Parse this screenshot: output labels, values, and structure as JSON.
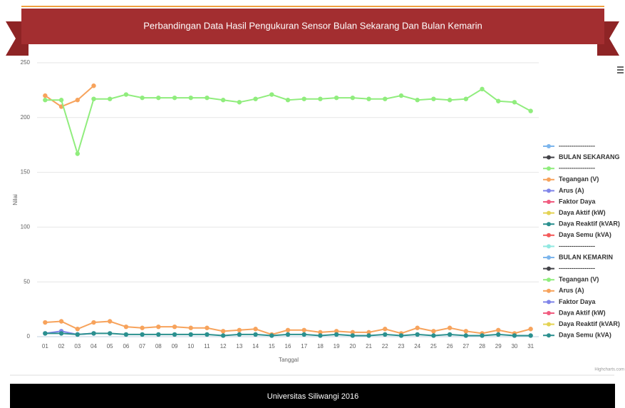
{
  "header": {
    "title": "Perbandingan Data Hasil Pengukuran Sensor Bulan Sekarang Dan Bulan Kemarin"
  },
  "chart_data": {
    "type": "line",
    "ylabel": "Nilai",
    "xlabel": "Tanggal",
    "credits": "Highcharts.com",
    "categories": [
      "01",
      "02",
      "03",
      "04",
      "05",
      "06",
      "07",
      "08",
      "09",
      "10",
      "11",
      "12",
      "13",
      "14",
      "15",
      "16",
      "17",
      "18",
      "19",
      "20",
      "21",
      "22",
      "23",
      "24",
      "25",
      "26",
      "27",
      "28",
      "29",
      "30",
      "31"
    ],
    "ylim": [
      0,
      250
    ],
    "yticks": [
      0,
      50,
      100,
      150,
      200,
      250
    ],
    "grid": true,
    "legend": "right",
    "series": [
      {
        "name": "-----------------",
        "color": "#7cb5ec"
      },
      {
        "name": "BULAN SEKARANG",
        "color": "#434348"
      },
      {
        "name": "-----------------",
        "color": "#90ed7d"
      },
      {
        "name": "Tegangan (V)",
        "color": "#f7a35c",
        "values": [
          220,
          210,
          216,
          229,
          null,
          null,
          null,
          null,
          null,
          null,
          null,
          null,
          null,
          null,
          null,
          null,
          null,
          null,
          null,
          null,
          null,
          null,
          null,
          null,
          null,
          null,
          null,
          null,
          null,
          null,
          null
        ]
      },
      {
        "name": "Arus (A)",
        "color": "#8085e9",
        "values": [
          3,
          5,
          2,
          3,
          null,
          null,
          null,
          null,
          null,
          null,
          null,
          null,
          null,
          null,
          null,
          null,
          null,
          null,
          null,
          null,
          null,
          null,
          null,
          null,
          null,
          null,
          null,
          null,
          null,
          null,
          null
        ]
      },
      {
        "name": "Faktor Daya",
        "color": "#f15c80"
      },
      {
        "name": "Daya Aktif (kW)",
        "color": "#e4d354"
      },
      {
        "name": "Daya Reaktif (kVAR)",
        "color": "#2b908f"
      },
      {
        "name": "Daya Semu (kVA)",
        "color": "#f45b5b"
      },
      {
        "name": "-----------------",
        "color": "#91e8e1"
      },
      {
        "name": "BULAN KEMARIN",
        "color": "#7cb5ec"
      },
      {
        "name": "-----------------",
        "color": "#434348"
      },
      {
        "name": "Tegangan (V)",
        "color": "#90ed7d",
        "values": [
          216,
          216,
          167,
          217,
          217,
          221,
          218,
          218,
          218,
          218,
          218,
          216,
          214,
          217,
          221,
          216,
          217,
          217,
          218,
          218,
          217,
          217,
          220,
          216,
          217,
          216,
          217,
          226,
          215,
          214,
          206
        ]
      },
      {
        "name": "Arus (A)",
        "color": "#f7a35c",
        "values": [
          13,
          14,
          7,
          13,
          14,
          9,
          8,
          9,
          9,
          8,
          8,
          5,
          6,
          7,
          2,
          6,
          6,
          4,
          5,
          4,
          4,
          7,
          3,
          8,
          5,
          8,
          5,
          3,
          6,
          3,
          7
        ]
      },
      {
        "name": "Faktor Daya",
        "color": "#8085e9"
      },
      {
        "name": "Daya Aktif (kW)",
        "color": "#f15c80"
      },
      {
        "name": "Daya Reaktif (kVAR)",
        "color": "#e4d354"
      },
      {
        "name": "Daya Semu (kVA)",
        "color": "#2b908f",
        "values": [
          3,
          3,
          2,
          3,
          3,
          2,
          2,
          2,
          2,
          2,
          2,
          1,
          2,
          2,
          1,
          2,
          2,
          1,
          2,
          1,
          1,
          2,
          1,
          2,
          1,
          2,
          1,
          1,
          2,
          1,
          1
        ]
      }
    ]
  },
  "footer": {
    "text": "Universitas Siliwangi 2016"
  }
}
